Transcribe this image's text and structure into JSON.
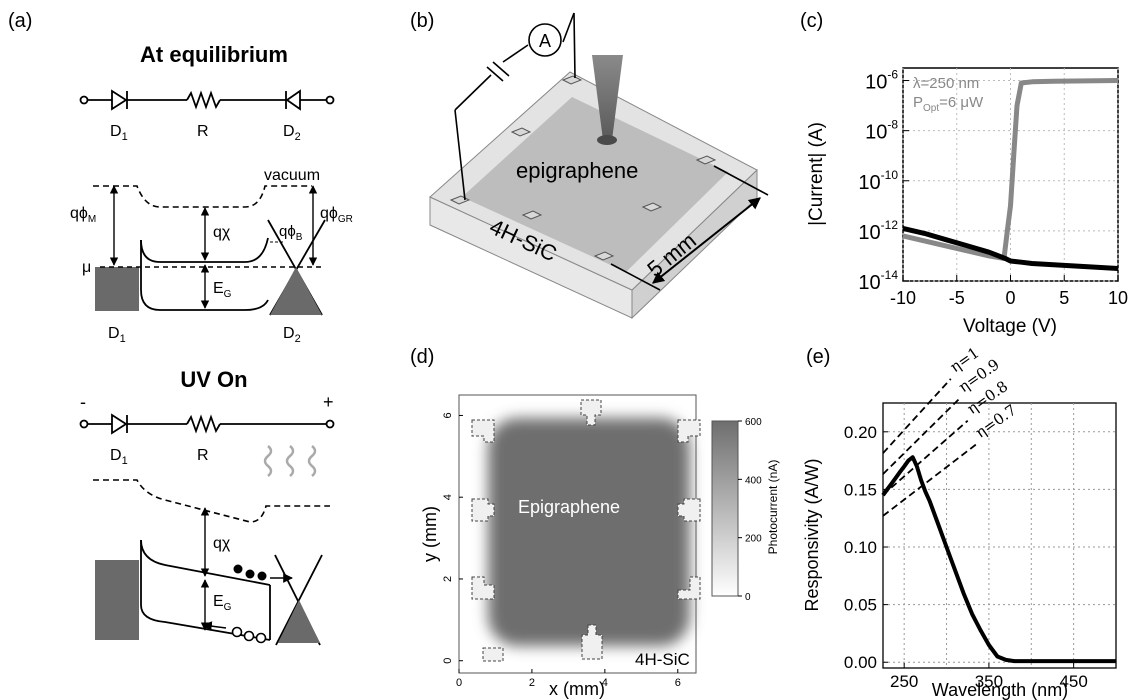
{
  "panel_labels": [
    "(a)",
    "(b)",
    "(c)",
    "(d)",
    "(e)"
  ],
  "panel_a": {
    "equilibrium_title": "At equilibrium",
    "uv_title": "UV On",
    "d1": "D",
    "d1_sub": "1",
    "r": "R",
    "d2": "D",
    "d2_sub": "2",
    "vacuum": "vacuum",
    "q_phi_m": "qϕ",
    "q_phi_m_sub": "M",
    "q_chi": "qχ",
    "q_phi_b": "qϕ",
    "q_phi_b_sub": "B",
    "q_phi_gr": "qϕ",
    "q_phi_gr_sub": "GR",
    "mu": "μ",
    "eg": "E",
    "eg_sub": "G",
    "minus": "-",
    "plus": "+"
  },
  "panel_b": {
    "ammeter": "A",
    "epigraphene": "epigraphene",
    "substrate": "4H-SiC",
    "dimension": "5 mm"
  },
  "panel_c": {
    "chart_data": {
      "type": "line",
      "xlabel": "Voltage (V)",
      "ylabel": "|Current| (A)",
      "xlim": [
        -10,
        10
      ],
      "ylim_log10": [
        -14,
        -5.5
      ],
      "xticks": [
        "-10",
        "-5",
        "0",
        "5",
        "10"
      ],
      "yticks": [
        {
          "base": "10",
          "exp": "-6"
        },
        {
          "base": "10",
          "exp": "-8"
        },
        {
          "base": "10",
          "exp": "-10"
        },
        {
          "base": "10",
          "exp": "-12"
        },
        {
          "base": "10",
          "exp": "-14"
        }
      ],
      "annotation_line1": "λ=250 nm",
      "annotation_p": "P",
      "annotation_p_sub": "Opt",
      "annotation_p_rest": "=6 μW",
      "series": [
        {
          "color": "#888888",
          "x": [
            -10,
            -8,
            -6,
            -4,
            -2,
            -0.6,
            -0.3,
            0,
            0.3,
            0.6,
            1,
            2,
            4,
            6,
            8,
            10
          ],
          "log10y": [
            -12.2,
            -12.4,
            -12.6,
            -12.8,
            -13.0,
            -13.1,
            -12.0,
            -11.0,
            -9.0,
            -7.0,
            -6.1,
            -6.05,
            -6.03,
            -6.02,
            -6.01,
            -6.0
          ]
        },
        {
          "color": "#000000",
          "x": [
            -10,
            -8,
            -6,
            -4,
            -2,
            -0.5,
            0,
            1,
            2,
            4,
            6,
            8,
            10
          ],
          "log10y": [
            -11.9,
            -12.1,
            -12.35,
            -12.6,
            -12.85,
            -13.1,
            -13.2,
            -13.25,
            -13.3,
            -13.35,
            -13.4,
            -13.45,
            -13.5
          ]
        }
      ]
    }
  },
  "panel_d": {
    "chart_data": {
      "type": "heatmap",
      "xlabel": "x (mm)",
      "ylabel": "y (mm)",
      "xlim": [
        0,
        6.5
      ],
      "ylim": [
        -0.3,
        6.5
      ],
      "xticks": [
        "0",
        "2",
        "4",
        "6"
      ],
      "yticks": [
        "0",
        "2",
        "4",
        "6"
      ],
      "colorbar_label": "Photocurrent (nA)",
      "colorbar_ticks": [
        "600",
        "400",
        "200",
        "0"
      ],
      "colorbar_max": 600,
      "region_label": "Epigraphene",
      "substrate_label": "4H-SiC"
    }
  },
  "panel_e": {
    "chart_data": {
      "type": "line",
      "xlabel": "Wavelength (nm)",
      "ylabel": "Responsivity (A/W)",
      "xlim": [
        225,
        500
      ],
      "ylim": [
        -0.005,
        0.225
      ],
      "xticks": [
        "250",
        "350",
        "450"
      ],
      "yticks": [
        "0.00",
        "0.05",
        "0.10",
        "0.15",
        "0.20"
      ],
      "eta_lines": [
        {
          "label": "η=1",
          "eta": 1.0
        },
        {
          "label": "η=0.9",
          "eta": 0.9
        },
        {
          "label": "η=0.8",
          "eta": 0.8
        },
        {
          "label": "η=0.7",
          "eta": 0.7
        }
      ],
      "x": [
        225,
        230,
        235,
        240,
        245,
        250,
        255,
        260,
        265,
        270,
        275,
        280,
        290,
        300,
        310,
        320,
        330,
        340,
        350,
        360,
        370,
        380,
        400,
        450,
        500
      ],
      "values": [
        0.145,
        0.15,
        0.155,
        0.16,
        0.165,
        0.17,
        0.175,
        0.178,
        0.17,
        0.158,
        0.148,
        0.14,
        0.12,
        0.1,
        0.08,
        0.06,
        0.042,
        0.028,
        0.015,
        0.005,
        0.002,
        0.001,
        0.001,
        0.001,
        0.001
      ]
    }
  }
}
